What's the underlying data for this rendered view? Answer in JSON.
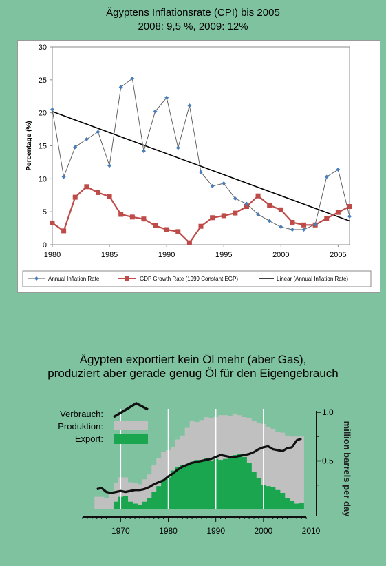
{
  "chart_data": [
    {
      "type": "line",
      "title": "Ägyptens Inflationsrate (CPI) bis 2005",
      "subtitle": "2008: 9,5 %, 2009:  12%",
      "xlabel": "",
      "ylabel": "Percentage (%)",
      "xlim": [
        1980,
        2006
      ],
      "ylim": [
        0,
        30
      ],
      "x_ticks": [
        1980,
        1985,
        1990,
        1995,
        2000,
        2005
      ],
      "y_ticks": [
        0,
        5,
        10,
        15,
        20,
        25,
        30
      ],
      "grid": false,
      "legend_position": "bottom",
      "x": [
        1980,
        1981,
        1982,
        1983,
        1984,
        1985,
        1986,
        1987,
        1988,
        1989,
        1990,
        1991,
        1992,
        1993,
        1994,
        1995,
        1996,
        1997,
        1998,
        1999,
        2000,
        2001,
        2002,
        2003,
        2004,
        2005,
        2006
      ],
      "series": [
        {
          "name": "Annual Inflation Rate",
          "color": "#4a7ebb",
          "marker": "diamond",
          "values": [
            20.5,
            10.3,
            14.8,
            16.0,
            17.1,
            12.0,
            23.9,
            25.2,
            14.2,
            20.2,
            22.3,
            14.7,
            21.1,
            11.0,
            8.9,
            9.3,
            7.0,
            6.2,
            4.6,
            3.6,
            2.7,
            2.3,
            2.3,
            3.1,
            10.3,
            11.4,
            4.3
          ]
        },
        {
          "name": "GDP Growth Rate (1999 Constant  EGP)",
          "color": "#be4b48",
          "marker": "square",
          "values": [
            3.3,
            2.1,
            7.2,
            8.8,
            7.9,
            7.3,
            4.6,
            4.2,
            3.9,
            2.9,
            2.3,
            2.0,
            0.3,
            2.8,
            4.1,
            4.4,
            4.8,
            5.8,
            7.4,
            6.0,
            5.3,
            3.4,
            3.0,
            3.0,
            4.0,
            4.9,
            5.8
          ]
        },
        {
          "name": "Linear (Annual Inflation Rate)",
          "color": "#000000",
          "type": "trend",
          "endpoints": [
            [
              1980,
              20.2
            ],
            [
              2006,
              3.6
            ]
          ]
        }
      ]
    },
    {
      "type": "area",
      "title": "Ägypten exportiert kein Öl mehr (aber Gas), produziert aber gerade genug Öl für den Eigengebrauch",
      "title_lines": [
        "Ägypten exportiert kein Öl mehr (aber Gas),",
        "produziert aber gerade genug Öl für den Eigengebrauch"
      ],
      "ylabel": "million barrels per day",
      "xlim": [
        1965,
        2009
      ],
      "ylim": [
        0,
        1.0
      ],
      "x_ticks": [
        1970,
        1980,
        1990,
        2000,
        2010
      ],
      "y_ticks": [
        0.5,
        1.0
      ],
      "y_tick_labels": [
        "0.5",
        "1.0"
      ],
      "legend_position": "left",
      "legend": [
        {
          "label": "Verbrauch:",
          "color": "#111111",
          "kind": "line"
        },
        {
          "label": "Produktion:",
          "color": "#c0c0c0",
          "kind": "area"
        },
        {
          "label": "Export:",
          "color": "#1aa64e",
          "kind": "area"
        }
      ],
      "x": [
        1965,
        1966,
        1967,
        1968,
        1969,
        1970,
        1971,
        1972,
        1973,
        1974,
        1975,
        1976,
        1977,
        1978,
        1979,
        1980,
        1981,
        1982,
        1983,
        1984,
        1985,
        1986,
        1987,
        1988,
        1989,
        1990,
        1991,
        1992,
        1993,
        1994,
        1995,
        1996,
        1997,
        1998,
        1999,
        2000,
        2001,
        2002,
        2003,
        2004,
        2005,
        2006,
        2007,
        2008
      ],
      "series": [
        {
          "name": "Verbrauch",
          "color": "#111111",
          "values": [
            0.21,
            0.22,
            0.18,
            0.17,
            0.18,
            0.19,
            0.18,
            0.19,
            0.2,
            0.2,
            0.21,
            0.23,
            0.26,
            0.28,
            0.3,
            0.34,
            0.37,
            0.41,
            0.44,
            0.46,
            0.48,
            0.49,
            0.5,
            0.51,
            0.52,
            0.54,
            0.56,
            0.55,
            0.54,
            0.54,
            0.55,
            0.56,
            0.57,
            0.59,
            0.62,
            0.64,
            0.65,
            0.62,
            0.61,
            0.6,
            0.63,
            0.64,
            0.71,
            0.73
          ]
        },
        {
          "name": "Produktion",
          "color": "#c0c0c0",
          "values": [
            0.13,
            0.13,
            0.12,
            0.17,
            0.27,
            0.33,
            0.33,
            0.28,
            0.27,
            0.26,
            0.31,
            0.36,
            0.46,
            0.53,
            0.59,
            0.61,
            0.64,
            0.72,
            0.76,
            0.84,
            0.91,
            0.9,
            0.92,
            0.95,
            0.94,
            0.95,
            0.97,
            0.97,
            0.96,
            0.98,
            0.97,
            0.95,
            0.94,
            0.91,
            0.89,
            0.88,
            0.85,
            0.83,
            0.8,
            0.79,
            0.76,
            0.75,
            0.75,
            0.75
          ]
        },
        {
          "name": "Export",
          "color": "#1aa64e",
          "values": [
            0.0,
            0.0,
            0.0,
            0.0,
            0.08,
            0.13,
            0.14,
            0.08,
            0.06,
            0.05,
            0.08,
            0.12,
            0.18,
            0.24,
            0.3,
            0.33,
            0.4,
            0.44,
            0.46,
            0.46,
            0.49,
            0.51,
            0.5,
            0.53,
            0.5,
            0.52,
            0.51,
            0.52,
            0.54,
            0.56,
            0.57,
            0.54,
            0.48,
            0.39,
            0.32,
            0.25,
            0.24,
            0.23,
            0.2,
            0.17,
            0.12,
            0.09,
            0.06,
            0.07
          ]
        }
      ]
    }
  ]
}
